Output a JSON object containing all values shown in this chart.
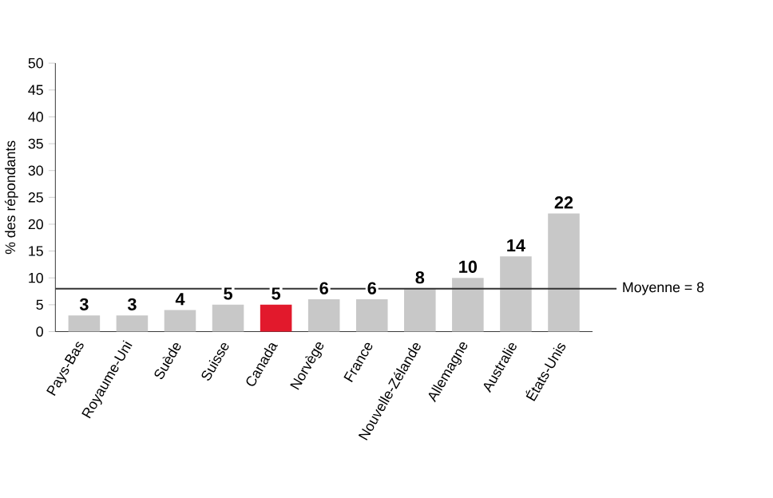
{
  "chart_data": {
    "type": "bar",
    "ylabel": "% des répondants",
    "categories": [
      "Pays-Bas",
      "Royaume-Uni",
      "Suède",
      "Suisse",
      "Canada",
      "Norvège",
      "France",
      "Nouvelle-Zélande",
      "Allemagne",
      "Australie",
      "États-Unis"
    ],
    "values": [
      3,
      3,
      4,
      5,
      5,
      6,
      6,
      8,
      10,
      14,
      22
    ],
    "colors": [
      "#c8c8c8",
      "#c8c8c8",
      "#c8c8c8",
      "#c8c8c8",
      "#e2192c",
      "#c8c8c8",
      "#c8c8c8",
      "#c8c8c8",
      "#c8c8c8",
      "#c8c8c8",
      "#c8c8c8"
    ],
    "ylim": [
      0,
      50
    ],
    "yticks": [
      0,
      5,
      10,
      15,
      20,
      25,
      30,
      35,
      40,
      45,
      50
    ],
    "ref_lines": [
      {
        "axis": "y",
        "value": 8,
        "label": "Moyenne = 8",
        "color": "#333333"
      }
    ],
    "data_labels": true
  }
}
